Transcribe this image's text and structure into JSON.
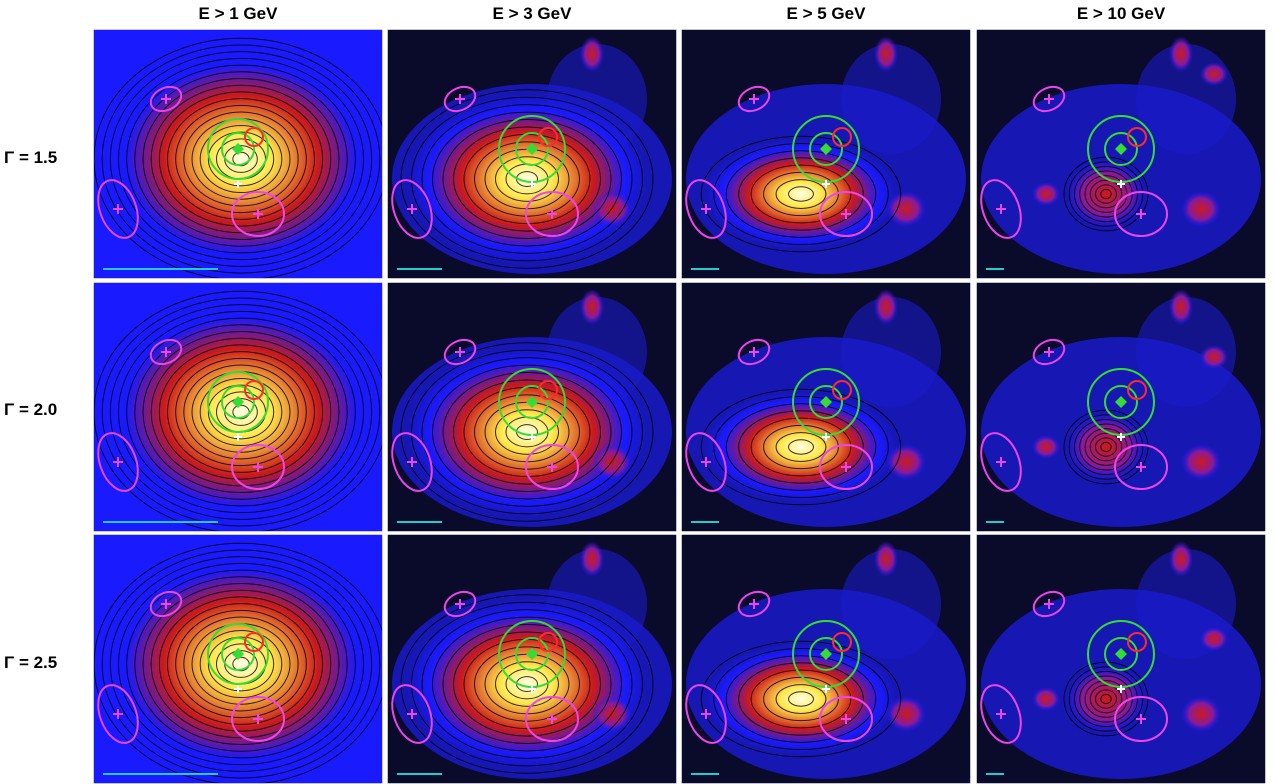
{
  "columns": [
    "E > 1 GeV",
    "E > 3 GeV",
    "E > 5 GeV",
    "E > 10 GeV"
  ],
  "rows": [
    "Γ = 1.5",
    "Γ = 2.0",
    "Γ = 2.5"
  ],
  "colors": {
    "background": "#000000",
    "low": "#1a1aff",
    "mid": "#cc1a1a",
    "high": "#ffe84d",
    "peak": "#ffffe6",
    "contour": "#000000",
    "green_circle": "#33dd33",
    "red_circle": "#ff2a2a",
    "magenta_ellipse": "#ee44ee",
    "scale_bar": "#22cccc",
    "marker_white": "#ffffff"
  }
}
